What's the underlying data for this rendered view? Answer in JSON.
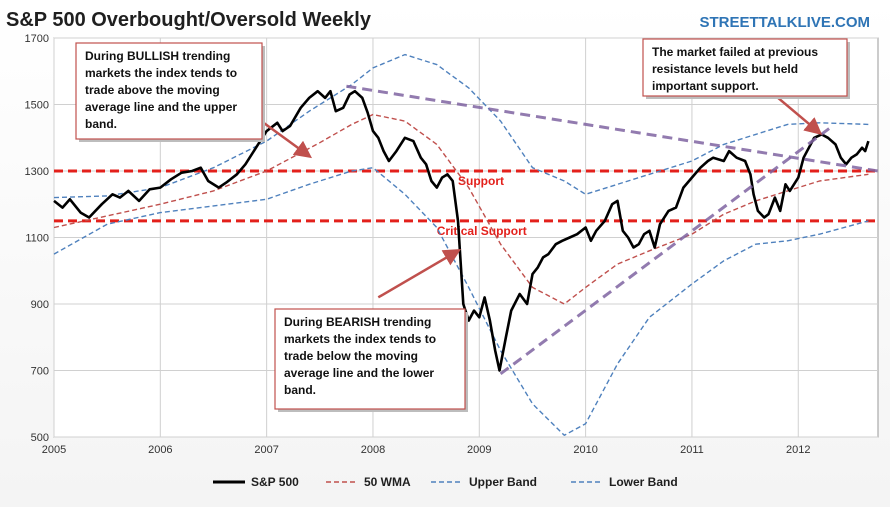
{
  "chart_data": {
    "type": "line",
    "title": "S&P 500 Overbought/Oversold Weekly",
    "watermark": "STREETTALKLIVE.COM",
    "ylim": [
      500,
      1700
    ],
    "yticks": [
      500,
      700,
      900,
      1100,
      1300,
      1500,
      1700
    ],
    "xlim": [
      2005,
      2012.75
    ],
    "xticks": [
      2005,
      2006,
      2007,
      2008,
      2009,
      2010,
      2011,
      2012
    ],
    "xtick_labels": [
      "2005",
      "2006",
      "2007",
      "2008",
      "2009",
      "2010",
      "2011",
      "2012"
    ],
    "series": [
      {
        "name": "S&P 500",
        "color": "#000000",
        "style": "solid",
        "x": [
          2005.0,
          2005.08,
          2005.15,
          2005.25,
          2005.33,
          2005.45,
          2005.55,
          2005.62,
          2005.7,
          2005.8,
          2005.9,
          2006.0,
          2006.1,
          2006.2,
          2006.3,
          2006.38,
          2006.45,
          2006.55,
          2006.62,
          2006.72,
          2006.8,
          2006.9,
          2007.0,
          2007.1,
          2007.15,
          2007.22,
          2007.32,
          2007.4,
          2007.48,
          2007.55,
          2007.6,
          2007.65,
          2007.72,
          2007.78,
          2007.83,
          2007.9,
          2007.95,
          2008.0,
          2008.05,
          2008.1,
          2008.15,
          2008.22,
          2008.3,
          2008.38,
          2008.45,
          2008.5,
          2008.55,
          2008.6,
          2008.65,
          2008.7,
          2008.75,
          2008.8,
          2008.85,
          2008.9,
          2008.95,
          2009.0,
          2009.05,
          2009.1,
          2009.15,
          2009.19,
          2009.25,
          2009.3,
          2009.38,
          2009.45,
          2009.5,
          2009.55,
          2009.6,
          2009.65,
          2009.72,
          2009.78,
          2009.85,
          2009.92,
          2010.0,
          2010.05,
          2010.1,
          2010.18,
          2010.25,
          2010.3,
          2010.35,
          2010.4,
          2010.45,
          2010.5,
          2010.55,
          2010.6,
          2010.65,
          2010.7,
          2010.78,
          2010.85,
          2010.92,
          2011.0,
          2011.08,
          2011.15,
          2011.2,
          2011.3,
          2011.35,
          2011.42,
          2011.5,
          2011.55,
          2011.58,
          2011.62,
          2011.68,
          2011.72,
          2011.78,
          2011.83,
          2011.88,
          2011.92,
          2012.0,
          2012.05,
          2012.1,
          2012.15,
          2012.22,
          2012.28,
          2012.35,
          2012.4,
          2012.45,
          2012.5,
          2012.55,
          2012.6,
          2012.63,
          2012.66
        ],
        "values": [
          1210,
          1190,
          1215,
          1175,
          1160,
          1200,
          1230,
          1220,
          1240,
          1210,
          1245,
          1250,
          1275,
          1295,
          1300,
          1310,
          1270,
          1250,
          1265,
          1290,
          1320,
          1370,
          1420,
          1445,
          1420,
          1435,
          1490,
          1520,
          1540,
          1520,
          1540,
          1480,
          1490,
          1530,
          1540,
          1520,
          1475,
          1420,
          1400,
          1360,
          1330,
          1360,
          1400,
          1390,
          1340,
          1320,
          1270,
          1250,
          1280,
          1290,
          1270,
          1150,
          900,
          850,
          880,
          860,
          920,
          850,
          760,
          700,
          800,
          880,
          930,
          900,
          990,
          1010,
          1040,
          1050,
          1080,
          1090,
          1100,
          1110,
          1130,
          1090,
          1120,
          1150,
          1200,
          1210,
          1120,
          1100,
          1070,
          1080,
          1110,
          1120,
          1070,
          1140,
          1180,
          1190,
          1250,
          1280,
          1310,
          1330,
          1340,
          1330,
          1360,
          1340,
          1330,
          1290,
          1230,
          1180,
          1160,
          1170,
          1220,
          1180,
          1260,
          1240,
          1280,
          1340,
          1370,
          1400,
          1410,
          1400,
          1380,
          1340,
          1320,
          1340,
          1350,
          1370,
          1360,
          1390
        ]
      },
      {
        "name": "50 WMA",
        "color": "#c0504d",
        "style": "dashed",
        "x": [
          2005.0,
          2005.5,
          2006.0,
          2006.5,
          2007.0,
          2007.5,
          2007.8,
          2008.0,
          2008.3,
          2008.6,
          2008.9,
          2009.2,
          2009.5,
          2009.8,
          2010.0,
          2010.3,
          2010.6,
          2011.0,
          2011.3,
          2011.6,
          2011.9,
          2012.2,
          2012.66
        ],
        "values": [
          1130,
          1165,
          1200,
          1240,
          1300,
          1385,
          1440,
          1470,
          1450,
          1380,
          1250,
          1080,
          950,
          900,
          950,
          1020,
          1060,
          1110,
          1170,
          1210,
          1240,
          1270,
          1290
        ]
      },
      {
        "name": "Upper Band",
        "color": "#4f81bd",
        "style": "dashed",
        "x": [
          2005.0,
          2005.5,
          2006.0,
          2006.5,
          2007.0,
          2007.4,
          2007.8,
          2008.0,
          2008.3,
          2008.6,
          2008.9,
          2009.2,
          2009.5,
          2009.8,
          2010.0,
          2010.3,
          2010.6,
          2011.0,
          2011.3,
          2011.6,
          2011.9,
          2012.2,
          2012.66
        ],
        "values": [
          1220,
          1225,
          1250,
          1310,
          1390,
          1480,
          1560,
          1610,
          1650,
          1620,
          1550,
          1450,
          1310,
          1270,
          1230,
          1260,
          1290,
          1330,
          1380,
          1410,
          1440,
          1445,
          1440
        ]
      },
      {
        "name": "Lower Band",
        "color": "#4f81bd",
        "style": "dashed",
        "x": [
          2005.0,
          2005.5,
          2006.0,
          2006.5,
          2007.0,
          2007.4,
          2007.8,
          2008.0,
          2008.3,
          2008.6,
          2008.9,
          2009.2,
          2009.5,
          2009.8,
          2010.0,
          2010.3,
          2010.6,
          2011.0,
          2011.3,
          2011.6,
          2011.9,
          2012.2,
          2012.66
        ],
        "values": [
          1050,
          1140,
          1175,
          1195,
          1215,
          1260,
          1300,
          1310,
          1230,
          1130,
          950,
          760,
          600,
          505,
          540,
          720,
          860,
          960,
          1030,
          1080,
          1090,
          1110,
          1150
        ]
      }
    ],
    "reference_lines": [
      {
        "label": "Support",
        "y": 1300,
        "color": "#e3201b",
        "label_x": 2008.8
      },
      {
        "label": "Critical Support",
        "y": 1150,
        "color": "#e3201b",
        "label_x": 2008.6
      }
    ],
    "trend_lines": [
      {
        "x1": 2007.75,
        "y1": 1555,
        "x2": 2012.75,
        "y2": 1300,
        "color": "#8064a2"
      },
      {
        "x1": 2009.2,
        "y1": 690,
        "x2": 2012.3,
        "y2": 1430,
        "color": "#8064a2"
      }
    ],
    "annotations": [
      {
        "text": "During BULLISH trending markets the index tends to trade above the moving average line and the upper band.",
        "lines": [
          "During BULLISH trending",
          "markets the index tends to",
          "trade above the moving",
          "average line and the upper",
          "band."
        ],
        "arrow_from": [
          2006.95,
          1450
        ],
        "arrow_to": [
          2007.4,
          1345
        ]
      },
      {
        "text": "During BEARISH trending markets the index tends to trade below the moving average line and the lower band.",
        "lines": [
          "During BEARISH trending",
          "markets the index tends to",
          "trade below the moving",
          "average line and the lower",
          "band."
        ],
        "arrow_from": [
          2008.05,
          920
        ],
        "arrow_to": [
          2008.8,
          1060
        ]
      },
      {
        "text": "The market failed at previous resistance levels but held important support.",
        "lines": [
          "The market failed at previous",
          "resistance levels but held",
          "important support."
        ],
        "arrow_from": [
          2011.55,
          1590
        ],
        "arrow_to": [
          2012.2,
          1415
        ]
      }
    ],
    "legend": {
      "placement": "bottom",
      "entries": [
        "S&P 500",
        "50 WMA",
        "Upper Band",
        "Lower Band"
      ]
    },
    "grid": true
  }
}
